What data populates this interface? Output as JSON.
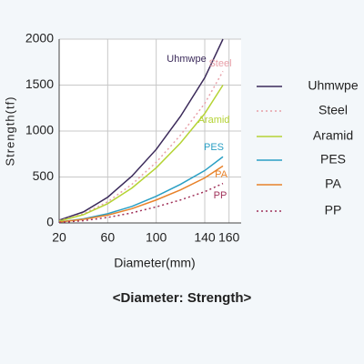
{
  "chart_data": {
    "type": "line",
    "y_label": "Strength(tf)",
    "x_label": "Diameter(mm)",
    "caption": "<Diameter: Strength>",
    "x": [
      20,
      40,
      60,
      80,
      100,
      120,
      140,
      155
    ],
    "xlim": [
      20,
      170
    ],
    "xticks": [
      20,
      60,
      100,
      140,
      160
    ],
    "ylim": [
      0,
      2000
    ],
    "yticks": [
      0,
      500,
      1000,
      1500,
      2000
    ],
    "grid": true,
    "series": [
      {
        "name": "Uhmwpe",
        "color": "#3b2a5a",
        "linestyle": "solid",
        "values": [
          30,
          120,
          280,
          510,
          800,
          1160,
          1580,
          2000
        ]
      },
      {
        "name": "Steel",
        "color": "#e8a0a8",
        "linestyle": "dotted",
        "values": [
          25,
          100,
          230,
          420,
          660,
          955,
          1300,
          1650
        ]
      },
      {
        "name": "Aramid",
        "color": "#b5d334",
        "linestyle": "solid",
        "values": [
          20,
          90,
          210,
          380,
          600,
          870,
          1190,
          1500
        ]
      },
      {
        "name": "PES",
        "color": "#2a9fc4",
        "linestyle": "solid",
        "values": [
          10,
          45,
          100,
          180,
          290,
          420,
          570,
          720
        ]
      },
      {
        "name": "PA",
        "color": "#e8822a",
        "linestyle": "solid",
        "values": [
          10,
          40,
          85,
          155,
          250,
          360,
          490,
          620
        ]
      },
      {
        "name": "PP",
        "color": "#a0325a",
        "linestyle": "dotted",
        "values": [
          5,
          25,
          60,
          110,
          175,
          250,
          340,
          430
        ]
      }
    ]
  }
}
